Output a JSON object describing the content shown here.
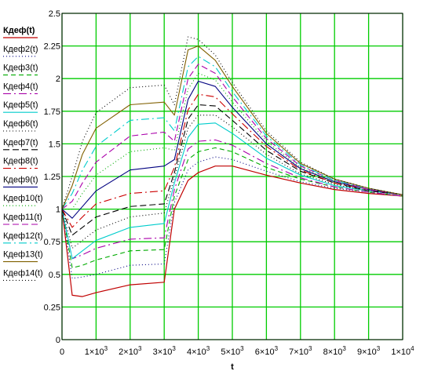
{
  "chart_data": {
    "type": "line",
    "title": "",
    "xlabel": "t",
    "ylabel": "",
    "xlim": [
      0,
      10000
    ],
    "ylim": [
      0,
      2.5
    ],
    "grid": true,
    "grid_color": "#00cc00",
    "legend_position": "left",
    "x_ticks": [
      {
        "value": 0,
        "base": "0",
        "exp": ""
      },
      {
        "value": 1000,
        "base": "1×10",
        "exp": "3"
      },
      {
        "value": 2000,
        "base": "2×10",
        "exp": "3"
      },
      {
        "value": 3000,
        "base": "3×10",
        "exp": "3"
      },
      {
        "value": 4000,
        "base": "4×10",
        "exp": "3"
      },
      {
        "value": 5000,
        "base": "5×10",
        "exp": "3"
      },
      {
        "value": 6000,
        "base": "6×10",
        "exp": "3"
      },
      {
        "value": 7000,
        "base": "7×10",
        "exp": "3"
      },
      {
        "value": 8000,
        "base": "8×10",
        "exp": "3"
      },
      {
        "value": 9000,
        "base": "9×10",
        "exp": "3"
      },
      {
        "value": 10000,
        "base": "1×10",
        "exp": "4"
      }
    ],
    "y_ticks": [
      "0",
      "0.25",
      "0.5",
      "0.75",
      "1",
      "1.25",
      "1.5",
      "1.75",
      "2",
      "2.25",
      "2.5"
    ],
    "x": [
      0,
      300,
      600,
      1000,
      2000,
      3000,
      3300,
      3700,
      4000,
      4500,
      5000,
      6000,
      7000,
      8000,
      9000,
      10000
    ],
    "series": [
      {
        "name": "Кдеф(t)",
        "color": "#c00000",
        "dash": "",
        "bold": true,
        "values": [
          1.0,
          0.34,
          0.33,
          0.36,
          0.42,
          0.44,
          1.0,
          1.22,
          1.28,
          1.33,
          1.33,
          1.26,
          1.2,
          1.15,
          1.12,
          1.1
        ]
      },
      {
        "name": "Кдеф2(t)",
        "color": "#000080",
        "dash": "1,3",
        "bold": false,
        "values": [
          1.0,
          0.47,
          0.48,
          0.5,
          0.57,
          0.58,
          1.05,
          1.3,
          1.36,
          1.4,
          1.38,
          1.29,
          1.21,
          1.16,
          1.13,
          1.1
        ]
      },
      {
        "name": "Кдеф3(t)",
        "color": "#00aa00",
        "dash": "6,4",
        "bold": false,
        "values": [
          1.0,
          0.55,
          0.57,
          0.61,
          0.68,
          0.69,
          1.1,
          1.38,
          1.44,
          1.47,
          1.44,
          1.32,
          1.23,
          1.17,
          1.13,
          1.1
        ]
      },
      {
        "name": "Кдеф4(t)",
        "color": "#aa00aa",
        "dash": "10,4,2,4",
        "bold": false,
        "values": [
          1.0,
          0.62,
          0.65,
          0.7,
          0.77,
          0.78,
          1.15,
          1.46,
          1.52,
          1.53,
          1.49,
          1.35,
          1.24,
          1.17,
          1.13,
          1.1
        ]
      },
      {
        "name": "Кдеф5(t)",
        "color": "#00cccc",
        "dash": "",
        "bold": false,
        "values": [
          1.0,
          0.62,
          0.68,
          0.76,
          0.86,
          0.89,
          1.2,
          1.55,
          1.65,
          1.66,
          1.58,
          1.39,
          1.26,
          1.18,
          1.14,
          1.11
        ]
      },
      {
        "name": "Кдеф6(t)",
        "color": "#000000",
        "dash": "1,3",
        "bold": false,
        "values": [
          1.0,
          0.7,
          0.76,
          0.84,
          0.94,
          0.97,
          1.24,
          1.62,
          1.72,
          1.72,
          1.63,
          1.42,
          1.27,
          1.19,
          1.14,
          1.11
        ]
      },
      {
        "name": "Кдеф7(t)",
        "color": "#000000",
        "dash": "8,4",
        "bold": false,
        "values": [
          1.0,
          0.8,
          0.86,
          0.94,
          1.02,
          1.04,
          1.28,
          1.69,
          1.8,
          1.79,
          1.68,
          1.45,
          1.29,
          1.2,
          1.14,
          1.11
        ]
      },
      {
        "name": "Кдеф8(t)",
        "color": "#cc0000",
        "dash": "10,4,2,4",
        "bold": false,
        "values": [
          1.0,
          0.86,
          0.94,
          1.04,
          1.12,
          1.14,
          1.32,
          1.76,
          1.88,
          1.86,
          1.73,
          1.48,
          1.3,
          1.2,
          1.15,
          1.11
        ]
      },
      {
        "name": "Кдеф9(t)",
        "color": "#000080",
        "dash": "",
        "bold": false,
        "values": [
          1.0,
          0.93,
          1.02,
          1.14,
          1.3,
          1.33,
          1.38,
          1.84,
          1.98,
          1.94,
          1.78,
          1.5,
          1.31,
          1.21,
          1.15,
          1.11
        ]
      },
      {
        "name": "Кдеф10(t)",
        "color": "#00aa00",
        "dash": "1,3",
        "bold": false,
        "values": [
          1.0,
          1.0,
          1.12,
          1.26,
          1.44,
          1.47,
          1.45,
          1.92,
          2.04,
          1.99,
          1.82,
          1.52,
          1.32,
          1.21,
          1.15,
          1.11
        ]
      },
      {
        "name": "Кдеф11(t)",
        "color": "#aa00aa",
        "dash": "8,4",
        "bold": false,
        "values": [
          1.0,
          1.06,
          1.2,
          1.36,
          1.56,
          1.59,
          1.52,
          2.0,
          2.11,
          2.04,
          1.86,
          1.54,
          1.33,
          1.22,
          1.15,
          1.11
        ]
      },
      {
        "name": "Кдеф12(t)",
        "color": "#00cccc",
        "dash": "10,4,2,4",
        "bold": false,
        "values": [
          1.0,
          1.12,
          1.3,
          1.48,
          1.68,
          1.7,
          1.6,
          2.09,
          2.17,
          2.09,
          1.9,
          1.56,
          1.34,
          1.22,
          1.16,
          1.11
        ]
      },
      {
        "name": "Кдеф13(t)",
        "color": "#806000",
        "dash": "",
        "bold": false,
        "values": [
          1.0,
          1.18,
          1.42,
          1.62,
          1.8,
          1.82,
          1.72,
          2.22,
          2.25,
          2.14,
          1.94,
          1.58,
          1.35,
          1.23,
          1.16,
          1.11
        ]
      },
      {
        "name": "Кдеф14(t)",
        "color": "#000000",
        "dash": "1,3",
        "bold": false,
        "values": [
          1.0,
          1.25,
          1.52,
          1.74,
          1.93,
          1.95,
          1.8,
          2.32,
          2.3,
          2.18,
          1.97,
          1.6,
          1.36,
          1.23,
          1.16,
          1.11
        ]
      }
    ]
  }
}
